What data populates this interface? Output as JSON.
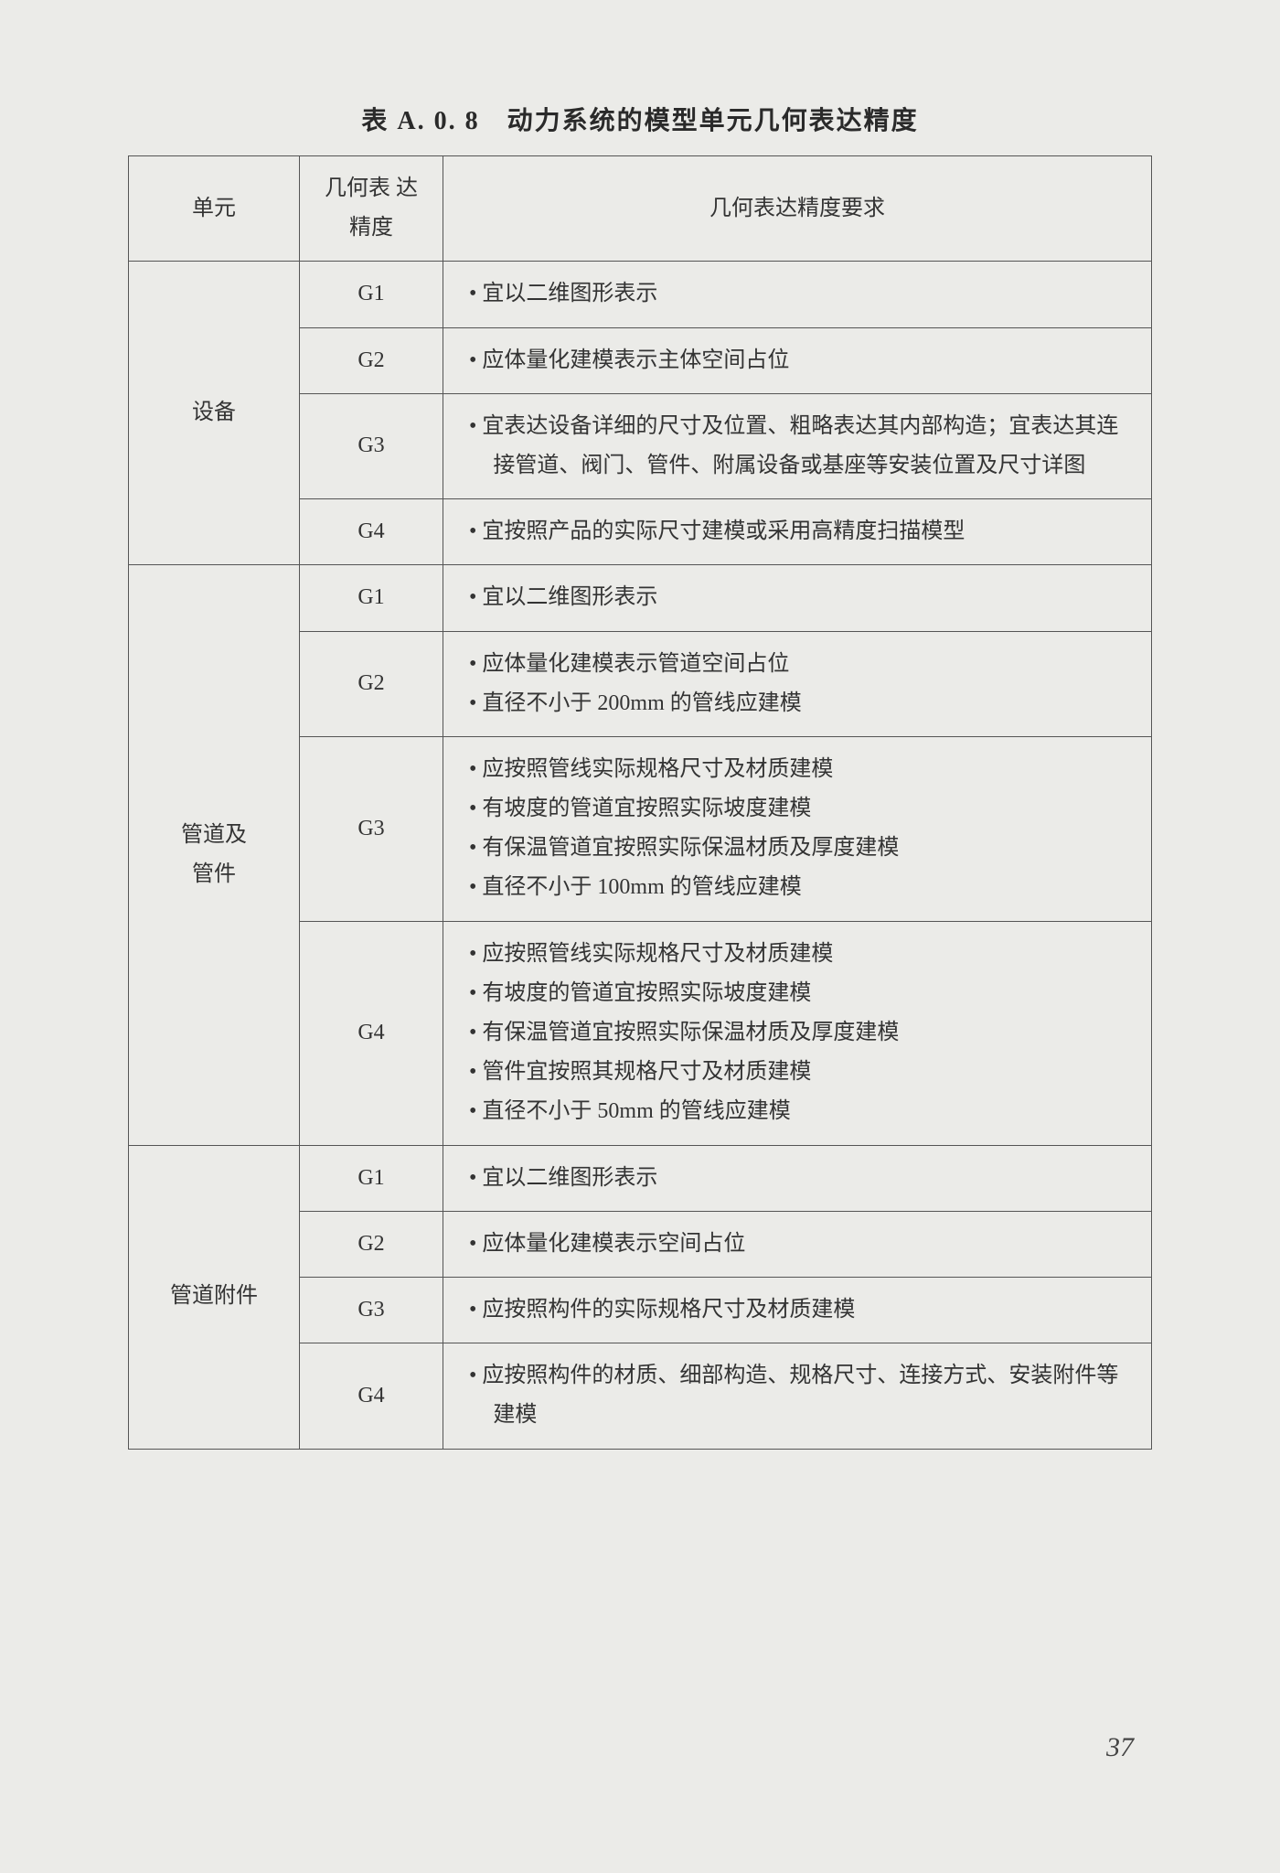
{
  "title": "表 A. 0. 8　动力系统的模型单元几何表达精度",
  "header": {
    "unit": "单元",
    "precision": "几何表\n达精度",
    "requirement": "几何表达精度要求"
  },
  "groups": [
    {
      "unit": "设备",
      "rows": [
        {
          "prec": "G1",
          "bullets": [
            "宜以二维图形表示"
          ]
        },
        {
          "prec": "G2",
          "bullets": [
            "应体量化建模表示主体空间占位"
          ]
        },
        {
          "prec": "G3",
          "bullets": [
            "宜表达设备详细的尺寸及位置、粗略表达其内部构造；宜表达其连接管道、阀门、管件、附属设备或基座等安装位置及尺寸详图"
          ]
        },
        {
          "prec": "G4",
          "bullets": [
            "宜按照产品的实际尺寸建模或采用高精度扫描模型"
          ]
        }
      ]
    },
    {
      "unit": "管道及\n管件",
      "rows": [
        {
          "prec": "G1",
          "bullets": [
            "宜以二维图形表示"
          ]
        },
        {
          "prec": "G2",
          "bullets": [
            "应体量化建模表示管道空间占位",
            "直径不小于 200mm 的管线应建模"
          ]
        },
        {
          "prec": "G3",
          "bullets": [
            "应按照管线实际规格尺寸及材质建模",
            "有坡度的管道宜按照实际坡度建模",
            "有保温管道宜按照实际保温材质及厚度建模",
            "直径不小于 100mm 的管线应建模"
          ]
        },
        {
          "prec": "G4",
          "bullets": [
            "应按照管线实际规格尺寸及材质建模",
            "有坡度的管道宜按照实际坡度建模",
            "有保温管道宜按照实际保温材质及厚度建模",
            "管件宜按照其规格尺寸及材质建模",
            "直径不小于 50mm 的管线应建模"
          ]
        }
      ]
    },
    {
      "unit": "管道附件",
      "rows": [
        {
          "prec": "G1",
          "bullets": [
            "宜以二维图形表示"
          ]
        },
        {
          "prec": "G2",
          "bullets": [
            "应体量化建模表示空间占位"
          ]
        },
        {
          "prec": "G3",
          "bullets": [
            "应按照构件的实际规格尺寸及材质建模"
          ]
        },
        {
          "prec": "G4",
          "bullets": [
            "应按照构件的材质、细部构造、规格尺寸、连接方式、安装附件等建模"
          ]
        }
      ]
    }
  ],
  "pageNumber": "37"
}
